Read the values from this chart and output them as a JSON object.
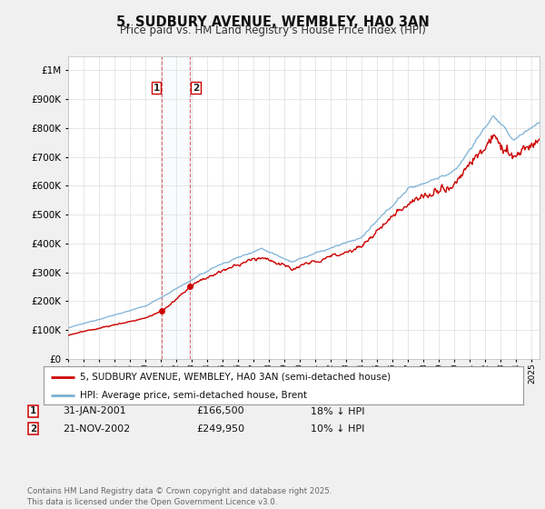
{
  "title": "5, SUDBURY AVENUE, WEMBLEY, HA0 3AN",
  "subtitle": "Price paid vs. HM Land Registry's House Price Index (HPI)",
  "legend_property": "5, SUDBURY AVENUE, WEMBLEY, HA0 3AN (semi-detached house)",
  "legend_hpi": "HPI: Average price, semi-detached house, Brent",
  "property_color": "#cc0000",
  "hpi_color": "#7ab0d4",
  "transaction1_date": "31-JAN-2001",
  "transaction1_price": 166500,
  "transaction1_label": "18% ↓ HPI",
  "transaction2_date": "21-NOV-2002",
  "transaction2_price": 249950,
  "transaction2_label": "10% ↓ HPI",
  "transaction1_x": 2001.08,
  "transaction2_x": 2002.89,
  "footnote": "Contains HM Land Registry data © Crown copyright and database right 2025.\nThis data is licensed under the Open Government Licence v3.0.",
  "ylim_min": 0,
  "ylim_max": 1050000,
  "xlim_min": 1995,
  "xlim_max": 2025.5,
  "background_color": "#f0f0f0",
  "plot_bg_color": "#ffffff",
  "grid_color": "#dddddd"
}
